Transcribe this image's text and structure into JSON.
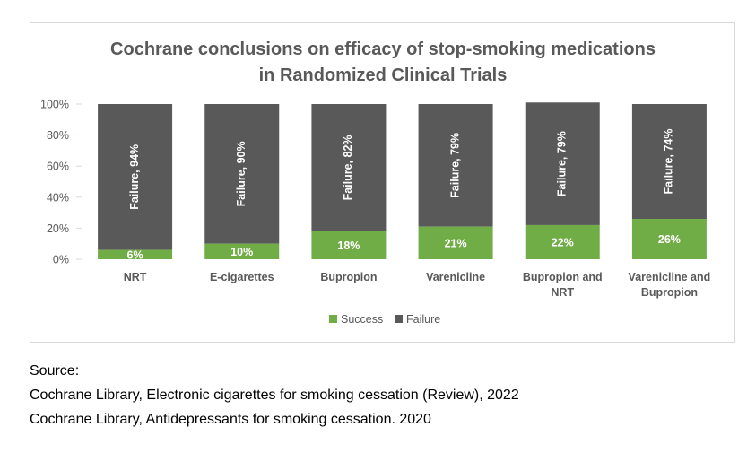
{
  "chart_data": {
    "type": "bar",
    "stacked": true,
    "title": "Cochrane conclusions on efficacy of stop-smoking medications",
    "subtitle": "in Randomized Clinical Trials",
    "categories": [
      [
        "NRT"
      ],
      [
        "E-cigarettes"
      ],
      [
        "Bupropion"
      ],
      [
        "Varenicline"
      ],
      [
        "Bupropion and",
        "NRT"
      ],
      [
        "Varenicline and",
        "Bupropion"
      ]
    ],
    "series": [
      {
        "name": "Success",
        "color": "#70ad47",
        "values": [
          6,
          10,
          18,
          21,
          22,
          26
        ],
        "labels": [
          "6%",
          "10%",
          "18%",
          "21%",
          "22%",
          "26%"
        ]
      },
      {
        "name": "Failure",
        "color": "#595959",
        "values": [
          94,
          90,
          82,
          79,
          79,
          74
        ],
        "labels": [
          "Failure, 94%",
          "Failure, 90%",
          "Failure, 82%",
          "Failure, 79%",
          "Failure, 79%",
          "Failure, 74%"
        ]
      }
    ],
    "yticks": [
      "0%",
      "20%",
      "40%",
      "60%",
      "80%",
      "100%"
    ],
    "ylim": [
      0,
      100
    ],
    "legend": "bottom",
    "xlabel": "",
    "ylabel": ""
  },
  "source": {
    "heading": "Source:",
    "lines": [
      "Cochrane Library, Electronic cigarettes for smoking cessation (Review), 2022",
      "Cochrane Library, Antidepressants for smoking cessation. 2020"
    ]
  }
}
